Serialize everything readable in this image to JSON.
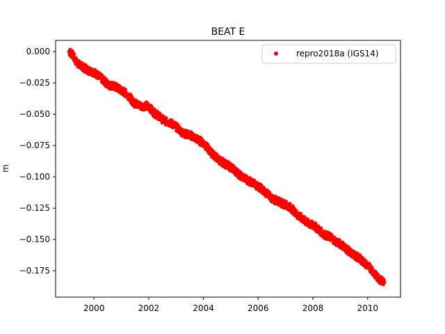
{
  "chart_data": {
    "type": "scatter",
    "title": "BEAT E",
    "xlabel": "",
    "ylabel": "m",
    "xlim": [
      1998.6,
      2011.2
    ],
    "ylim": [
      -0.196,
      0.009
    ],
    "xticks": [
      2000,
      2002,
      2004,
      2006,
      2008,
      2010
    ],
    "xtick_labels": [
      "2000",
      "2002",
      "2004",
      "2006",
      "2008",
      "2010"
    ],
    "yticks": [
      0.0,
      -0.025,
      -0.05,
      -0.075,
      -0.1,
      -0.125,
      -0.15,
      -0.175
    ],
    "ytick_labels": [
      "0.000",
      "−0.025",
      "−0.050",
      "−0.075",
      "−0.100",
      "−0.125",
      "−0.150",
      "−0.175"
    ],
    "legend_position": "top-right",
    "grid": false,
    "series": [
      {
        "name": "repro2018a (IGS14)",
        "color": "#ff0000",
        "marker": "circle",
        "x": [
          1999.1,
          1999.2,
          1999.35,
          1999.5,
          1999.65,
          1999.8,
          1999.95,
          2000.1,
          2000.25,
          2000.4,
          2000.55,
          2000.7,
          2000.85,
          2001.0,
          2001.15,
          2001.3,
          2001.45,
          2001.6,
          2001.75,
          2001.9,
          2002.05,
          2002.2,
          2002.35,
          2002.5,
          2002.65,
          2002.8,
          2002.95,
          2003.1,
          2003.25,
          2003.4,
          2003.55,
          2003.7,
          2003.85,
          2004.0,
          2004.15,
          2004.3,
          2004.45,
          2004.6,
          2004.75,
          2004.9,
          2005.05,
          2005.2,
          2005.35,
          2005.5,
          2005.65,
          2005.8,
          2005.95,
          2006.1,
          2006.25,
          2006.4,
          2006.55,
          2006.7,
          2006.85,
          2007.0,
          2007.15,
          2007.3,
          2007.45,
          2007.6,
          2007.75,
          2007.9,
          2008.05,
          2008.2,
          2008.35,
          2008.5,
          2008.65,
          2008.8,
          2008.95,
          2009.1,
          2009.25,
          2009.4,
          2009.55,
          2009.7,
          2009.85,
          2010.0,
          2010.15,
          2010.3,
          2010.45,
          2010.6
        ],
        "y": [
          0.0,
          -0.002,
          -0.008,
          -0.011,
          -0.013,
          -0.015,
          -0.016,
          -0.018,
          -0.021,
          -0.024,
          -0.027,
          -0.027,
          -0.029,
          -0.031,
          -0.033,
          -0.036,
          -0.041,
          -0.042,
          -0.044,
          -0.043,
          -0.045,
          -0.049,
          -0.051,
          -0.054,
          -0.056,
          -0.057,
          -0.059,
          -0.062,
          -0.065,
          -0.066,
          -0.067,
          -0.069,
          -0.071,
          -0.073,
          -0.077,
          -0.081,
          -0.084,
          -0.087,
          -0.089,
          -0.091,
          -0.093,
          -0.096,
          -0.099,
          -0.101,
          -0.103,
          -0.105,
          -0.107,
          -0.109,
          -0.112,
          -0.115,
          -0.118,
          -0.119,
          -0.121,
          -0.122,
          -0.124,
          -0.127,
          -0.131,
          -0.133,
          -0.136,
          -0.138,
          -0.139,
          -0.142,
          -0.145,
          -0.147,
          -0.148,
          -0.151,
          -0.153,
          -0.155,
          -0.158,
          -0.161,
          -0.163,
          -0.165,
          -0.168,
          -0.171,
          -0.174,
          -0.179,
          -0.182,
          -0.184
        ]
      }
    ]
  }
}
